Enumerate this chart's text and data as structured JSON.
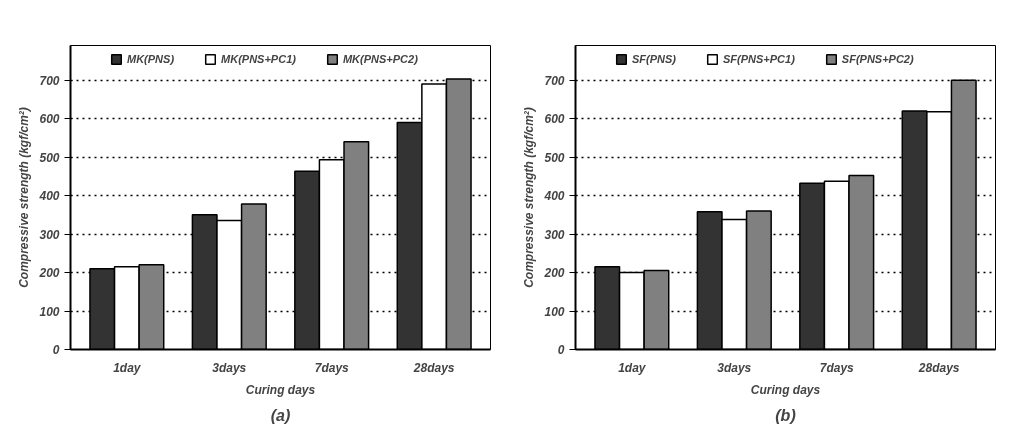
{
  "chart_data": [
    {
      "type": "bar",
      "title": "(a)",
      "xlabel": "Curing days",
      "ylabel": "Compressive strength (kgf/cm²)",
      "categories": [
        "1day",
        "3days",
        "7days",
        "28days"
      ],
      "series": [
        {
          "name": "MK(PNS)",
          "color": "#333333",
          "values": [
            210,
            350,
            463,
            590
          ]
        },
        {
          "name": "MK(PNS+PC1)",
          "color": "#ffffff",
          "values": [
            215,
            335,
            493,
            690
          ]
        },
        {
          "name": "MK(PNS+PC2)",
          "color": "#808080",
          "values": [
            220,
            378,
            540,
            703
          ]
        }
      ],
      "ylim": [
        0,
        790
      ],
      "yticks": [
        0,
        100,
        200,
        300,
        400,
        500,
        600,
        700
      ],
      "grid": "y",
      "legend": "top"
    },
    {
      "type": "bar",
      "title": "(b)",
      "xlabel": "Curing days",
      "ylabel": "Compressive strength (kgf/cm²)",
      "categories": [
        "1day",
        "3days",
        "7days",
        "28days"
      ],
      "series": [
        {
          "name": "SF(PNS)",
          "color": "#333333",
          "values": [
            215,
            358,
            432,
            620
          ]
        },
        {
          "name": "SF(PNS+PC1)",
          "color": "#ffffff",
          "values": [
            200,
            338,
            437,
            618
          ]
        },
        {
          "name": "SF(PNS+PC2)",
          "color": "#808080",
          "values": [
            205,
            360,
            452,
            700
          ]
        }
      ],
      "ylim": [
        0,
        790
      ],
      "yticks": [
        0,
        100,
        200,
        300,
        400,
        500,
        600,
        700
      ],
      "grid": "y",
      "legend": "top"
    }
  ]
}
